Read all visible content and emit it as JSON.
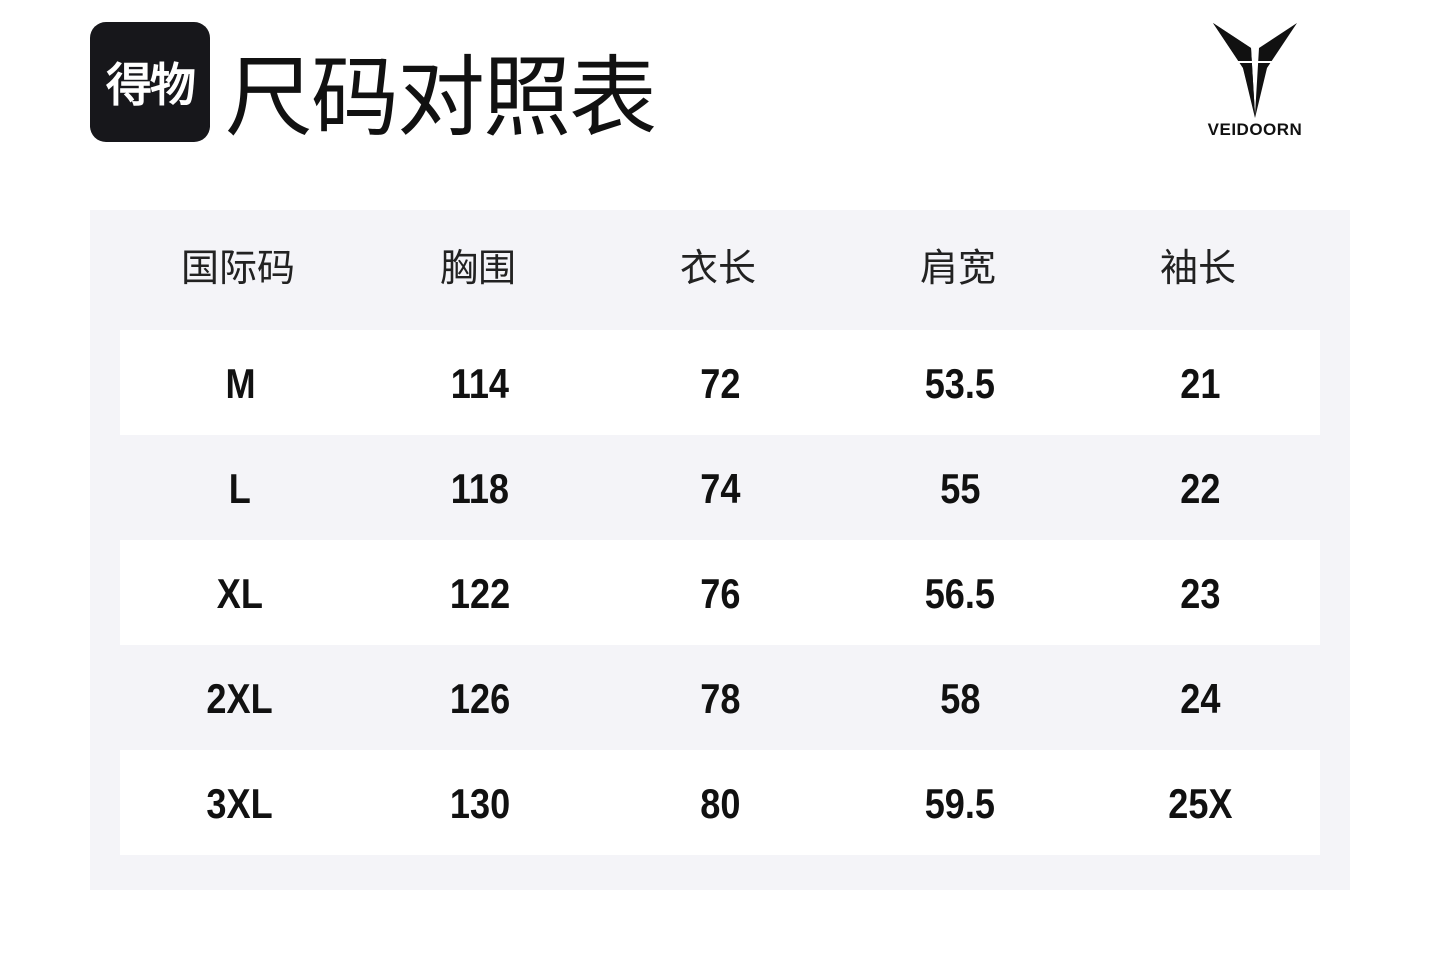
{
  "header": {
    "app_logo_text": "得物",
    "title": "尺码对照表",
    "brand_name": "VEIDOORN"
  },
  "table": {
    "columns": [
      "国际码",
      "胸围",
      "衣长",
      "肩宽",
      "袖长"
    ],
    "rows": [
      [
        "M",
        "114",
        "72",
        "53.5",
        "21"
      ],
      [
        "L",
        "118",
        "74",
        "55",
        "22"
      ],
      [
        "XL",
        "122",
        "76",
        "56.5",
        "23"
      ],
      [
        "2XL",
        "126",
        "78",
        "58",
        "24"
      ],
      [
        "3XL",
        "130",
        "80",
        "59.5",
        "25X"
      ]
    ]
  },
  "colors": {
    "panel_bg": "#f4f4f8",
    "row_highlight": "#ffffff",
    "logo_bg": "#17171b"
  }
}
